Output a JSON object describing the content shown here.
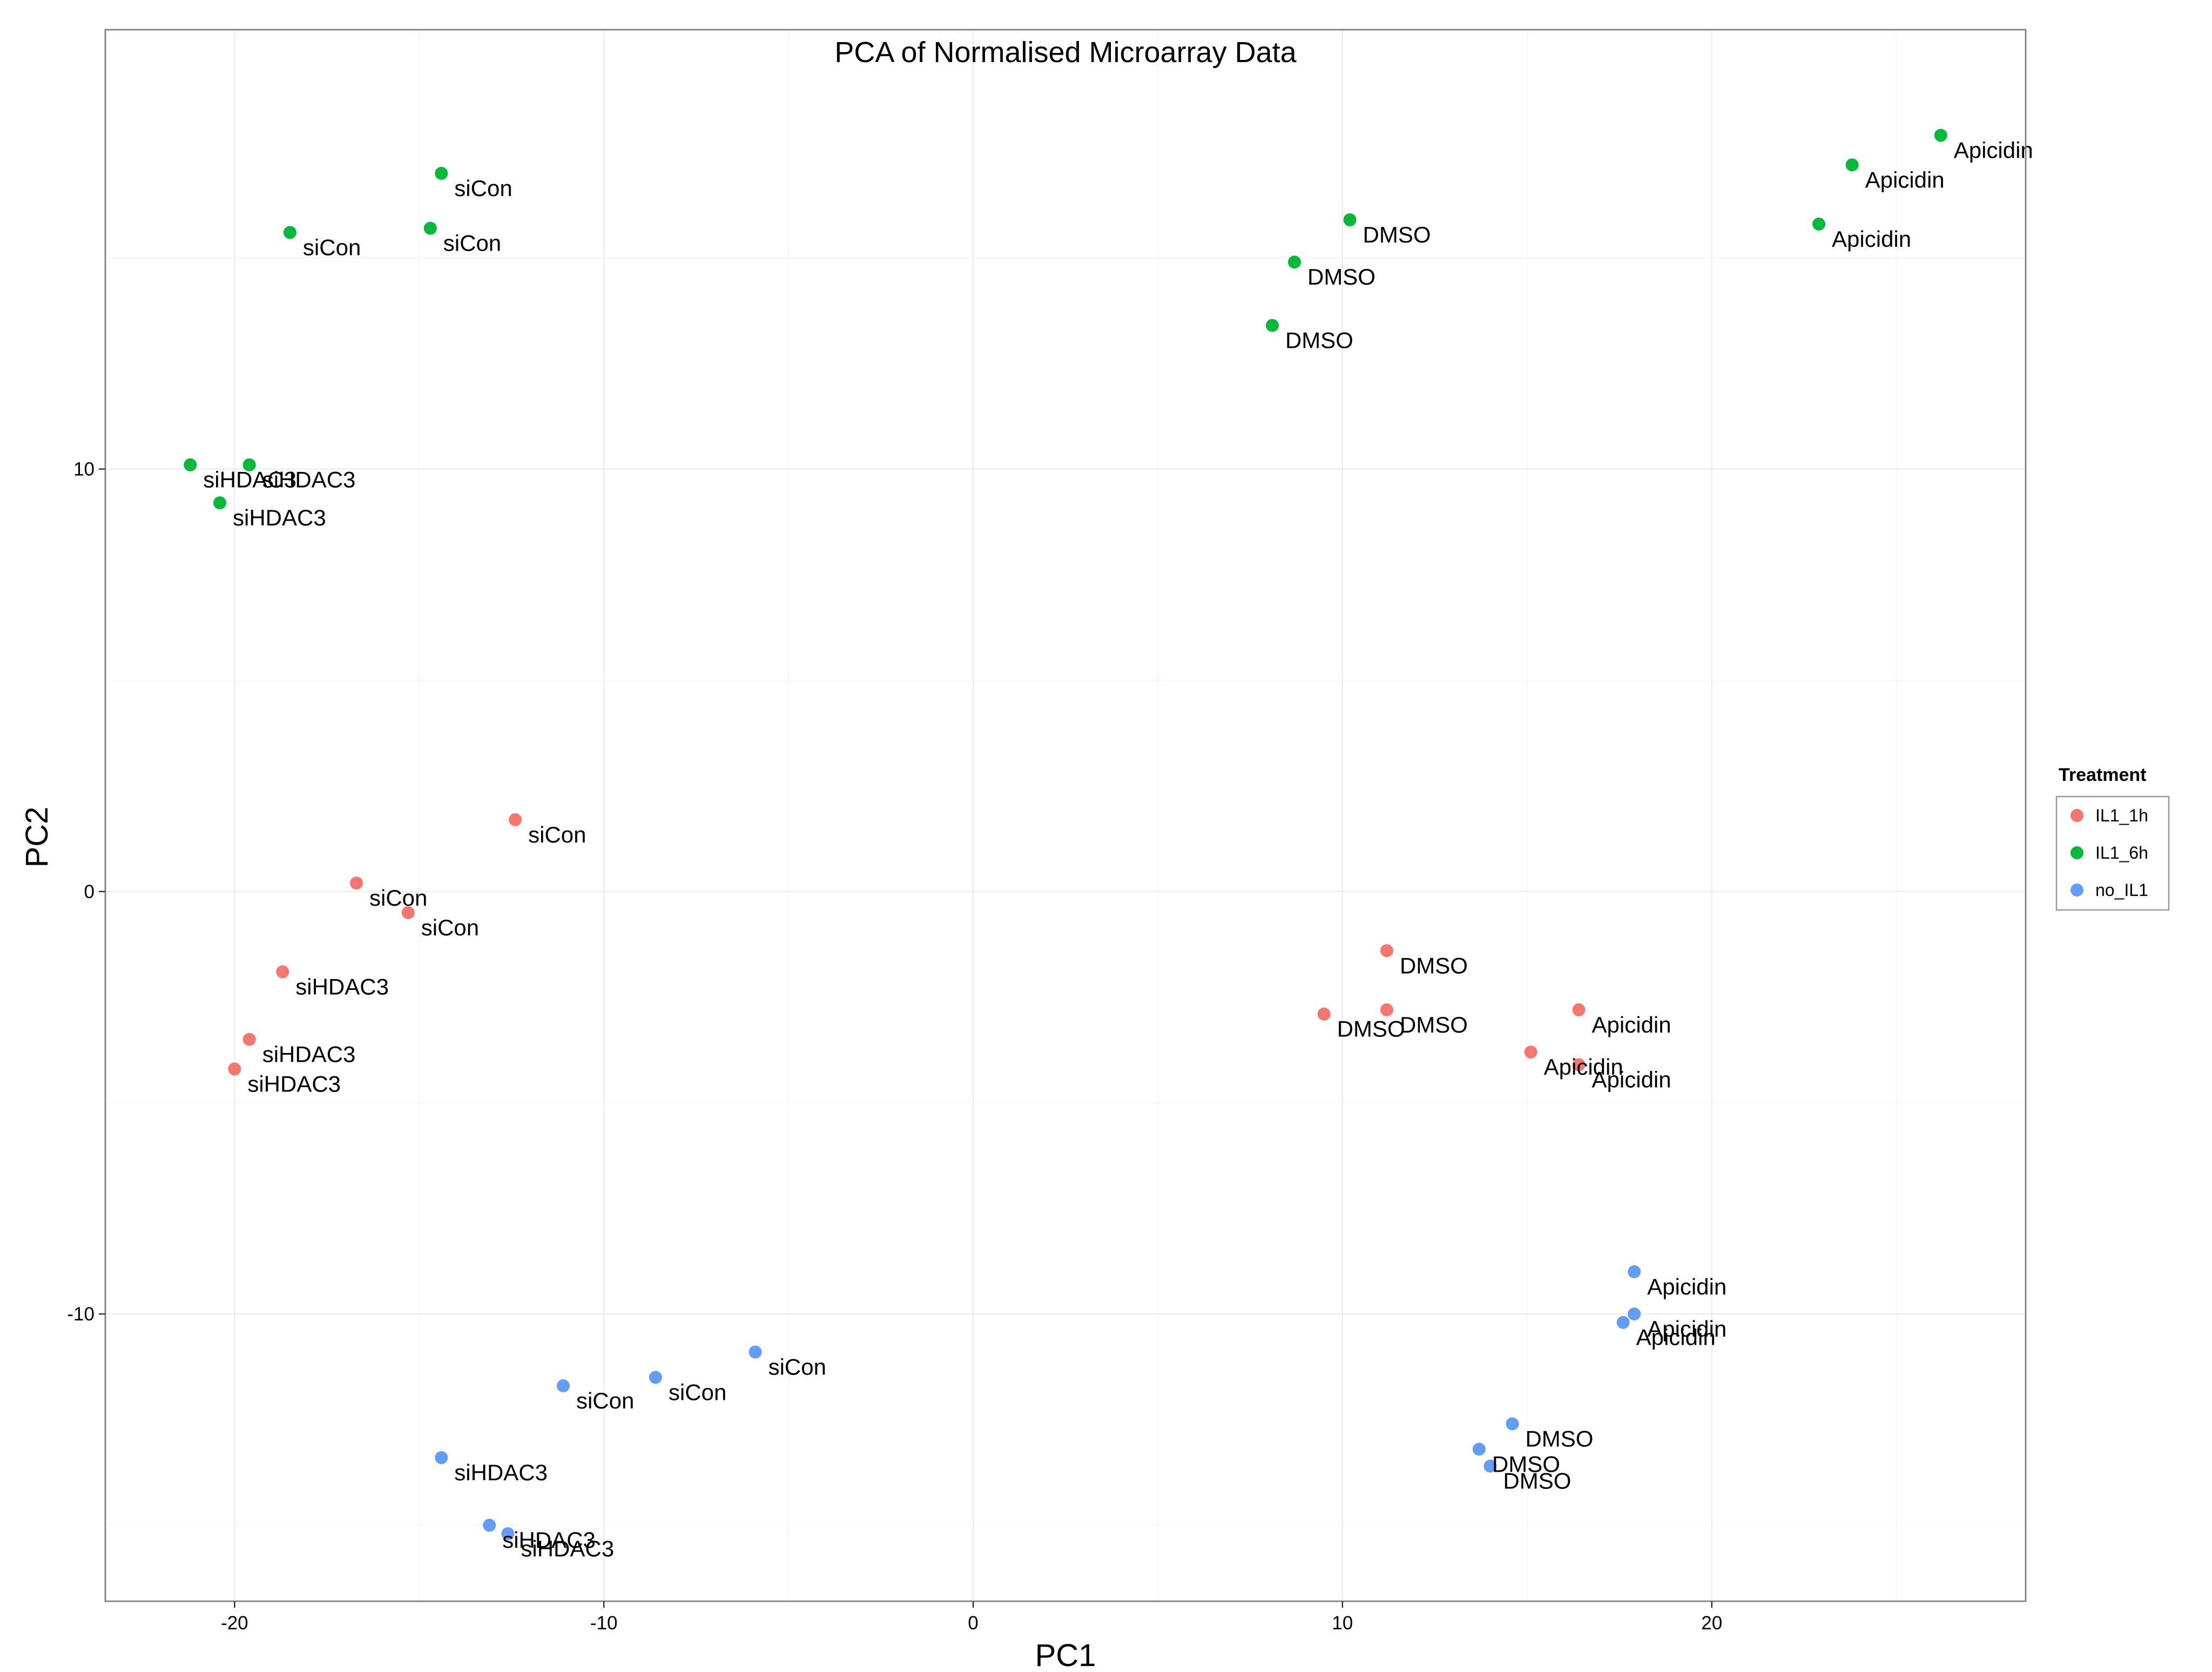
{
  "chart_data": {
    "type": "scatter",
    "title": "PCA of Normalised Microarray Data",
    "xlabel": "PC1",
    "ylabel": "PC2",
    "xlim": [
      -23.5,
      28.5
    ],
    "ylim": [
      -16.8,
      20.4
    ],
    "x_ticks": [
      -20,
      -10,
      0,
      10,
      20
    ],
    "y_ticks": [
      -10,
      0,
      10
    ],
    "x_tick_labels": [
      "-20",
      "-10",
      "0",
      "10",
      "20"
    ],
    "y_tick_labels": [
      "-10",
      "0",
      "10"
    ],
    "grid": true,
    "legend": {
      "title": "Treatment",
      "placement": "right"
    },
    "series": [
      {
        "name": "IL1_1h",
        "color": "#F8766D",
        "points": [
          {
            "x": -12.4,
            "y": 1.7,
            "label": "siCon"
          },
          {
            "x": -16.7,
            "y": 0.2,
            "label": "siCon"
          },
          {
            "x": -15.3,
            "y": -0.5,
            "label": "siCon"
          },
          {
            "x": -18.7,
            "y": -1.9,
            "label": "siHDAC3"
          },
          {
            "x": -19.6,
            "y": -3.5,
            "label": "siHDAC3"
          },
          {
            "x": -20.0,
            "y": -4.2,
            "label": "siHDAC3"
          },
          {
            "x": 11.2,
            "y": -1.4,
            "label": "DMSO"
          },
          {
            "x": 9.5,
            "y": -2.9,
            "label": "DMSO"
          },
          {
            "x": 11.2,
            "y": -2.8,
            "label": "DMSO"
          },
          {
            "x": 16.4,
            "y": -2.8,
            "label": "Apicidin"
          },
          {
            "x": 15.1,
            "y": -3.8,
            "label": "Apicidin"
          },
          {
            "x": 16.4,
            "y": -4.1,
            "label": "Apicidin"
          }
        ]
      },
      {
        "name": "IL1_6h",
        "color": "#00BA38",
        "points": [
          {
            "x": -14.4,
            "y": 17.0,
            "label": "siCon"
          },
          {
            "x": -18.5,
            "y": 15.6,
            "label": "siCon"
          },
          {
            "x": -14.7,
            "y": 15.7,
            "label": "siCon"
          },
          {
            "x": -21.2,
            "y": 10.1,
            "label": "siHDAC3"
          },
          {
            "x": -19.6,
            "y": 10.1,
            "label": "siHDAC3"
          },
          {
            "x": -20.4,
            "y": 9.2,
            "label": "siHDAC3"
          },
          {
            "x": 10.2,
            "y": 15.9,
            "label": "DMSO"
          },
          {
            "x": 8.7,
            "y": 14.9,
            "label": "DMSO"
          },
          {
            "x": 8.1,
            "y": 13.4,
            "label": "DMSO"
          },
          {
            "x": 26.2,
            "y": 17.9,
            "label": "Apicidin"
          },
          {
            "x": 23.8,
            "y": 17.2,
            "label": "Apicidin"
          },
          {
            "x": 22.9,
            "y": 15.8,
            "label": "Apicidin"
          }
        ]
      },
      {
        "name": "no_IL1",
        "color": "#619CFF",
        "points": [
          {
            "x": -5.9,
            "y": -10.9,
            "label": "siCon"
          },
          {
            "x": -11.1,
            "y": -11.7,
            "label": "siCon"
          },
          {
            "x": -8.6,
            "y": -11.5,
            "label": "siCon"
          },
          {
            "x": -14.4,
            "y": -13.4,
            "label": "siHDAC3"
          },
          {
            "x": -13.1,
            "y": -15.0,
            "label": "siHDAC3"
          },
          {
            "x": -12.6,
            "y": -15.2,
            "label": "siHDAC3"
          },
          {
            "x": 14.6,
            "y": -12.6,
            "label": "DMSO"
          },
          {
            "x": 13.7,
            "y": -13.2,
            "label": "DMSO"
          },
          {
            "x": 14.0,
            "y": -13.6,
            "label": "DMSO"
          },
          {
            "x": 17.9,
            "y": -9.0,
            "label": "Apicidin"
          },
          {
            "x": 17.9,
            "y": -10.0,
            "label": "Apicidin"
          },
          {
            "x": 17.6,
            "y": -10.2,
            "label": "Apicidin"
          }
        ]
      }
    ]
  }
}
